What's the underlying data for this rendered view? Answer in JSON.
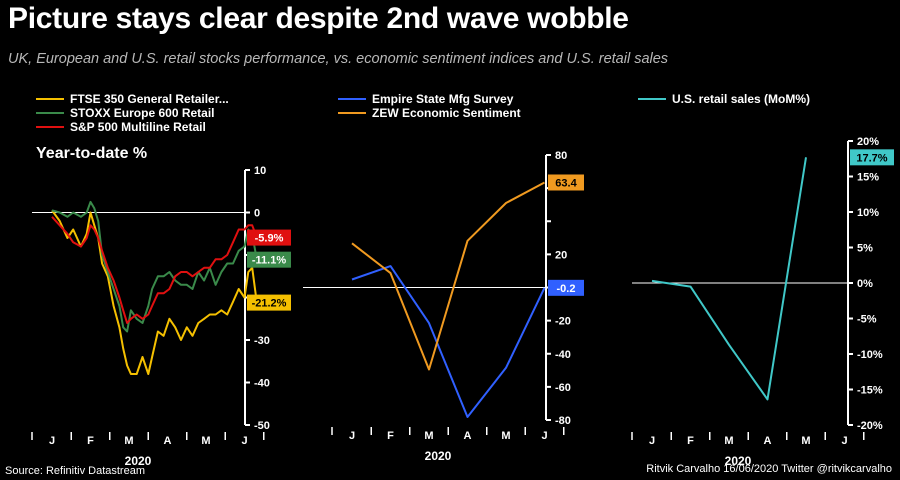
{
  "title": "Picture stays clear despite 2nd wave wobble",
  "subtitle": "UK, European and U.S. retail stocks performance, vs. economic sentiment indices and U.S. retail sales",
  "panel1_label": "Year-to-date %",
  "source": "Source: Refinitiv Datastream",
  "credit": "Ritvik Carvalho 16/06/2020 Twitter @ritvikcarvalho",
  "colors": {
    "ftse": "#f5c000",
    "stoxx": "#3a8a4a",
    "sp": "#e01010",
    "empire": "#3060ff",
    "zew": "#f09a20",
    "retail": "#40c8c8"
  },
  "chart_data": [
    {
      "type": "line",
      "title": "",
      "ylabel": "Year-to-date %",
      "xlabel": "2020",
      "ylim": [
        -50,
        10
      ],
      "yticks": [
        10,
        0,
        -10,
        -20,
        -30,
        -40,
        -50
      ],
      "ytick_labels": [
        "10",
        "0",
        "",
        "",
        "-30",
        "-40",
        "-50"
      ],
      "xticks": [
        "J",
        "F",
        "M",
        "A",
        "M",
        "J"
      ],
      "xlim": [
        0,
        5.4
      ],
      "series": [
        {
          "name": "FTSE 350 General Retailer...",
          "color_key": "ftse",
          "end_label": "-21.2%",
          "x": [
            0,
            0.2,
            0.4,
            0.55,
            0.75,
            0.9,
            1.0,
            1.1,
            1.2,
            1.3,
            1.45,
            1.6,
            1.75,
            1.85,
            1.95,
            2.05,
            2.2,
            2.35,
            2.5,
            2.6,
            2.75,
            2.9,
            3.05,
            3.2,
            3.35,
            3.5,
            3.65,
            3.8,
            3.95,
            4.1,
            4.25,
            4.4,
            4.55,
            4.7,
            4.85,
            5.0,
            5.1,
            5.2,
            5.32
          ],
          "y": [
            0.5,
            -2,
            -6,
            -4,
            -8,
            -5,
            0,
            -3,
            -6,
            -12,
            -15,
            -22,
            -27,
            -32,
            -36,
            -38,
            -38,
            -34,
            -38,
            -34,
            -28,
            -29,
            -25,
            -27,
            -30,
            -27,
            -29,
            -26,
            -25,
            -24,
            -24,
            -23,
            -24,
            -21,
            -18,
            -20,
            -14,
            -13,
            -21.2
          ]
        },
        {
          "name": "STOXX Europe 600 Retail",
          "color_key": "stoxx",
          "end_label": "-11.1%",
          "x": [
            0,
            0.2,
            0.4,
            0.55,
            0.75,
            0.9,
            1.0,
            1.1,
            1.2,
            1.3,
            1.45,
            1.6,
            1.75,
            1.85,
            1.95,
            2.05,
            2.2,
            2.35,
            2.5,
            2.6,
            2.75,
            2.9,
            3.05,
            3.2,
            3.35,
            3.5,
            3.65,
            3.8,
            3.95,
            4.1,
            4.25,
            4.4,
            4.55,
            4.7,
            4.85,
            5.0,
            5.1,
            5.2,
            5.32
          ],
          "y": [
            0.5,
            0,
            -1,
            0,
            -1,
            0,
            2.5,
            1,
            -2,
            -10,
            -14,
            -18,
            -22,
            -27,
            -28,
            -23,
            -25,
            -26,
            -22,
            -18,
            -15,
            -15,
            -14,
            -16,
            -17,
            -17,
            -18,
            -14,
            -16,
            -13,
            -17,
            -14,
            -12,
            -12,
            -9,
            -8,
            -4,
            -5,
            -11.1
          ]
        },
        {
          "name": "S&P 500 Multiline Retail",
          "color_key": "sp",
          "end_label": "-5.9%",
          "x": [
            0,
            0.2,
            0.4,
            0.55,
            0.75,
            0.9,
            1.0,
            1.1,
            1.2,
            1.3,
            1.45,
            1.6,
            1.75,
            1.85,
            1.95,
            2.05,
            2.2,
            2.35,
            2.5,
            2.6,
            2.75,
            2.9,
            3.05,
            3.2,
            3.35,
            3.5,
            3.65,
            3.8,
            3.95,
            4.1,
            4.25,
            4.4,
            4.55,
            4.7,
            4.85,
            5.0,
            5.1,
            5.2,
            5.32
          ],
          "y": [
            -1,
            -3,
            -5,
            -7,
            -8,
            -6,
            -3,
            -4,
            -6,
            -9,
            -13,
            -16,
            -20,
            -23,
            -26,
            -25,
            -24,
            -25,
            -24,
            -22,
            -19,
            -19,
            -18,
            -15,
            -14,
            -14,
            -15,
            -14,
            -13,
            -13,
            -11,
            -11,
            -10,
            -7,
            -4,
            -4,
            -3,
            -3,
            -5.9
          ]
        }
      ]
    },
    {
      "type": "line",
      "title": "",
      "xlabel": "2020",
      "ylim": [
        -80,
        80
      ],
      "yticks": [
        80,
        60,
        40,
        20,
        0,
        -20,
        -40,
        -60,
        -80
      ],
      "ytick_labels": [
        "80",
        "",
        "",
        "20",
        "",
        "-20",
        "-40",
        "-60",
        "-80"
      ],
      "xticks": [
        "J",
        "F",
        "M",
        "A",
        "M",
        "J"
      ],
      "xlim": [
        0,
        5.4
      ],
      "series": [
        {
          "name": "Empire State Mfg Survey",
          "color_key": "empire",
          "end_label": "-0.2",
          "x": [
            0,
            1,
            2,
            3,
            4,
            5
          ],
          "y": [
            4.8,
            12.9,
            -21.5,
            -78.2,
            -48.5,
            -0.2
          ]
        },
        {
          "name": "ZEW Economic Sentiment",
          "color_key": "zew",
          "end_label": "63.4",
          "x": [
            0,
            1,
            2,
            3,
            4,
            5
          ],
          "y": [
            26.7,
            8.7,
            -49.5,
            28.2,
            51,
            63.4
          ]
        }
      ]
    },
    {
      "type": "line",
      "title": "",
      "xlabel": "2020",
      "ylim": [
        -20,
        20
      ],
      "yticks": [
        20,
        15,
        10,
        5,
        0,
        -5,
        -10,
        -15,
        -20
      ],
      "ytick_labels": [
        "20%",
        "15%",
        "10%",
        "5%",
        "0%",
        "-5%",
        "-10%",
        "-15%",
        "-20%"
      ],
      "xticks": [
        "J",
        "F",
        "M",
        "A",
        "M",
        "J"
      ],
      "xlim": [
        0,
        5.4
      ],
      "series": [
        {
          "name": "U.S. retail sales (MoM%)",
          "color_key": "retail",
          "end_label": "17.7%",
          "x": [
            0,
            1,
            2,
            3,
            4
          ],
          "y": [
            0.3,
            -0.5,
            -8.7,
            -16.4,
            17.7
          ]
        }
      ]
    }
  ]
}
